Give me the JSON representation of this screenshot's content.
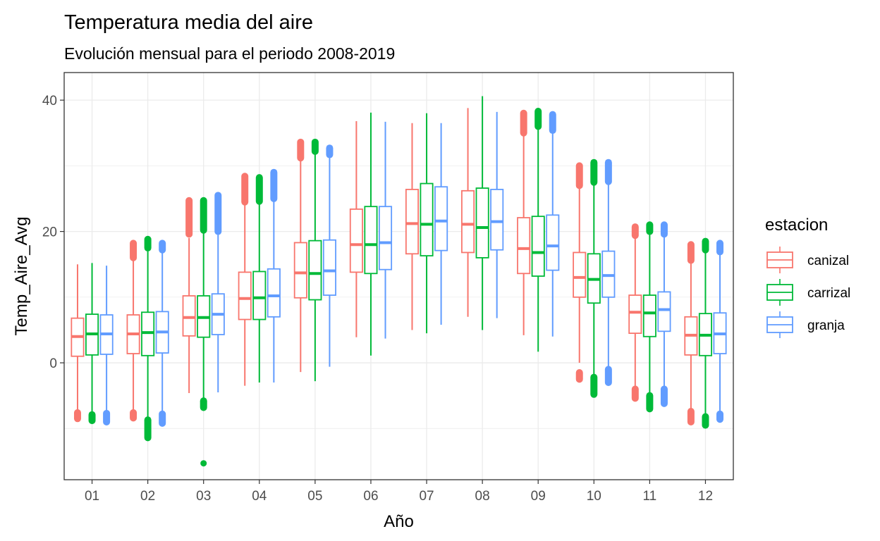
{
  "chart_data": {
    "type": "boxplot",
    "title": "Temperatura media del aire",
    "subtitle": "Evolución mensual para el periodo 2008-2019",
    "xlabel": "Año",
    "ylabel": "Temp_Aire_Avg",
    "categories": [
      "01",
      "02",
      "03",
      "04",
      "05",
      "06",
      "07",
      "08",
      "09",
      "10",
      "11",
      "12"
    ],
    "yticks": [
      0,
      20,
      40
    ],
    "ylim": [
      -17.8,
      44.2
    ],
    "grid": true,
    "legend": {
      "title": "estacion",
      "position": "right"
    },
    "series": [
      {
        "name": "canizal",
        "color": "#F8766D",
        "boxes": [
          {
            "lower_whisker": -7.2,
            "q1": 1.0,
            "median": 4.0,
            "q3": 6.8,
            "upper_whisker": 15.0,
            "outliers_low": [
              -7.6,
              -8.5
            ],
            "outliers_high": []
          },
          {
            "lower_whisker": -7.2,
            "q1": 1.4,
            "median": 4.4,
            "q3": 7.3,
            "upper_whisker": 15.7,
            "outliers_low": [
              -7.6,
              -8.4
            ],
            "outliers_high": [
              16.0,
              18.2
            ]
          },
          {
            "lower_whisker": -4.6,
            "q1": 4.1,
            "median": 6.9,
            "q3": 10.2,
            "upper_whisker": 19.0,
            "outliers_low": [],
            "outliers_high": [
              19.6,
              24.7
            ]
          },
          {
            "lower_whisker": -3.5,
            "q1": 6.6,
            "median": 9.8,
            "q3": 13.8,
            "upper_whisker": 24.0,
            "outliers_low": [],
            "outliers_high": [
              24.5,
              28.4
            ]
          },
          {
            "lower_whisker": -1.4,
            "q1": 9.9,
            "median": 13.7,
            "q3": 18.3,
            "upper_whisker": 30.8,
            "outliers_low": [],
            "outliers_high": [
              31.2,
              33.6
            ]
          },
          {
            "lower_whisker": 3.9,
            "q1": 13.8,
            "median": 18.0,
            "q3": 23.4,
            "upper_whisker": 36.8,
            "outliers_low": [],
            "outliers_high": []
          },
          {
            "lower_whisker": 5.0,
            "q1": 16.6,
            "median": 21.2,
            "q3": 26.4,
            "upper_whisker": 36.5,
            "outliers_low": [],
            "outliers_high": []
          },
          {
            "lower_whisker": 7.0,
            "q1": 16.8,
            "median": 21.1,
            "q3": 26.2,
            "upper_whisker": 38.8,
            "outliers_low": [],
            "outliers_high": []
          },
          {
            "lower_whisker": 4.2,
            "q1": 13.6,
            "median": 17.4,
            "q3": 22.1,
            "upper_whisker": 34.5,
            "outliers_low": [],
            "outliers_high": [
              35.0,
              38.0
            ]
          },
          {
            "lower_whisker": 0.0,
            "q1": 10.0,
            "median": 13.0,
            "q3": 16.8,
            "upper_whisker": 26.5,
            "outliers_low": [
              -1.5,
              -2.5
            ],
            "outliers_high": [
              27.0,
              30.0
            ]
          },
          {
            "lower_whisker": -3.5,
            "q1": 4.5,
            "median": 7.7,
            "q3": 10.3,
            "upper_whisker": 19.0,
            "outliers_low": [
              -4.0,
              -5.4
            ],
            "outliers_high": [
              19.4,
              20.7
            ]
          },
          {
            "lower_whisker": -7.0,
            "q1": 1.2,
            "median": 4.2,
            "q3": 7.0,
            "upper_whisker": 15.2,
            "outliers_low": [
              -7.4,
              -9.0
            ],
            "outliers_high": [
              15.6,
              18.0
            ]
          }
        ]
      },
      {
        "name": "carrizal",
        "color": "#00BA38",
        "boxes": [
          {
            "lower_whisker": -7.5,
            "q1": 1.2,
            "median": 4.4,
            "q3": 7.4,
            "upper_whisker": 15.2,
            "outliers_low": [
              -7.9,
              -8.8
            ],
            "outliers_high": []
          },
          {
            "lower_whisker": -8.3,
            "q1": 1.1,
            "median": 4.6,
            "q3": 7.7,
            "upper_whisker": 17.0,
            "outliers_low": [
              -8.7,
              -11.4
            ],
            "outliers_high": [
              17.5,
              18.8
            ]
          },
          {
            "lower_whisker": -5.5,
            "q1": 3.9,
            "median": 6.9,
            "q3": 10.2,
            "upper_whisker": 19.8,
            "outliers_low": [
              -5.8,
              -6.8,
              -15.3
            ],
            "outliers_high": [
              20.2,
              24.7
            ]
          },
          {
            "lower_whisker": -3.0,
            "q1": 6.6,
            "median": 9.9,
            "q3": 13.9,
            "upper_whisker": 24.2,
            "outliers_low": [],
            "outliers_high": [
              24.6,
              28.2
            ]
          },
          {
            "lower_whisker": -2.8,
            "q1": 9.6,
            "median": 13.6,
            "q3": 18.6,
            "upper_whisker": 31.8,
            "outliers_low": [],
            "outliers_high": [
              32.2,
              33.6
            ]
          },
          {
            "lower_whisker": 1.1,
            "q1": 13.6,
            "median": 18.0,
            "q3": 23.8,
            "upper_whisker": 38.1,
            "outliers_low": [],
            "outliers_high": []
          },
          {
            "lower_whisker": 4.5,
            "q1": 16.3,
            "median": 21.1,
            "q3": 27.3,
            "upper_whisker": 38.0,
            "outliers_low": [],
            "outliers_high": []
          },
          {
            "lower_whisker": 5.0,
            "q1": 16.0,
            "median": 20.6,
            "q3": 26.6,
            "upper_whisker": 40.6,
            "outliers_low": [],
            "outliers_high": []
          },
          {
            "lower_whisker": 1.7,
            "q1": 13.2,
            "median": 16.8,
            "q3": 22.3,
            "upper_whisker": 35.5,
            "outliers_low": [],
            "outliers_high": [
              36.0,
              38.3
            ]
          },
          {
            "lower_whisker": -1.8,
            "q1": 9.1,
            "median": 12.7,
            "q3": 16.6,
            "upper_whisker": 27.0,
            "outliers_low": [
              -2.2,
              -4.8
            ],
            "outliers_high": [
              27.5,
              30.5
            ]
          },
          {
            "lower_whisker": -4.6,
            "q1": 4.0,
            "median": 7.6,
            "q3": 10.3,
            "upper_whisker": 19.6,
            "outliers_low": [
              -5.0,
              -7.0
            ],
            "outliers_high": [
              20.0,
              21.0
            ]
          },
          {
            "lower_whisker": -7.8,
            "q1": 1.1,
            "median": 4.2,
            "q3": 7.5,
            "upper_whisker": 16.8,
            "outliers_low": [
              -8.2,
              -9.5
            ],
            "outliers_high": [
              17.2,
              18.5
            ]
          }
        ]
      },
      {
        "name": "granja",
        "color": "#619CFF",
        "boxes": [
          {
            "lower_whisker": -7.3,
            "q1": 1.3,
            "median": 4.4,
            "q3": 7.3,
            "upper_whisker": 14.8,
            "outliers_low": [
              -7.7,
              -9.0
            ],
            "outliers_high": []
          },
          {
            "lower_whisker": -7.4,
            "q1": 1.5,
            "median": 4.7,
            "q3": 7.8,
            "upper_whisker": 16.8,
            "outliers_low": [
              -7.8,
              -9.2
            ],
            "outliers_high": [
              17.2,
              18.2
            ]
          },
          {
            "lower_whisker": -4.5,
            "q1": 4.3,
            "median": 7.4,
            "q3": 10.5,
            "upper_whisker": 19.5,
            "outliers_low": [],
            "outliers_high": [
              20.0,
              25.5
            ]
          },
          {
            "lower_whisker": -3.0,
            "q1": 7.0,
            "median": 10.2,
            "q3": 14.3,
            "upper_whisker": 24.6,
            "outliers_low": [],
            "outliers_high": [
              25.0,
              29.0
            ]
          },
          {
            "lower_whisker": -0.6,
            "q1": 10.3,
            "median": 14.0,
            "q3": 18.7,
            "upper_whisker": 31.3,
            "outliers_low": [],
            "outliers_high": [
              31.7,
              32.7
            ]
          },
          {
            "lower_whisker": 3.7,
            "q1": 14.2,
            "median": 18.3,
            "q3": 23.8,
            "upper_whisker": 36.7,
            "outliers_low": [],
            "outliers_high": []
          },
          {
            "lower_whisker": 5.8,
            "q1": 17.1,
            "median": 21.6,
            "q3": 26.8,
            "upper_whisker": 36.5,
            "outliers_low": [],
            "outliers_high": []
          },
          {
            "lower_whisker": 6.8,
            "q1": 17.2,
            "median": 21.5,
            "q3": 26.4,
            "upper_whisker": 38.2,
            "outliers_low": [],
            "outliers_high": []
          },
          {
            "lower_whisker": 4.0,
            "q1": 14.1,
            "median": 17.8,
            "q3": 22.5,
            "upper_whisker": 35.0,
            "outliers_low": [],
            "outliers_high": [
              35.4,
              37.8
            ]
          },
          {
            "lower_whisker": -0.5,
            "q1": 10.0,
            "median": 13.3,
            "q3": 17.0,
            "upper_whisker": 27.2,
            "outliers_low": [
              -1.0,
              -3.0
            ],
            "outliers_high": [
              27.6,
              30.5
            ]
          },
          {
            "lower_whisker": -3.6,
            "q1": 4.8,
            "median": 8.1,
            "q3": 10.8,
            "upper_whisker": 19.2,
            "outliers_low": [
              -4.0,
              -6.2
            ],
            "outliers_high": [
              19.6,
              21.0
            ]
          },
          {
            "lower_whisker": -7.4,
            "q1": 1.4,
            "median": 4.4,
            "q3": 7.6,
            "upper_whisker": 16.5,
            "outliers_low": [
              -7.8,
              -8.6
            ],
            "outliers_high": [
              16.9,
              18.2
            ]
          }
        ]
      }
    ]
  }
}
